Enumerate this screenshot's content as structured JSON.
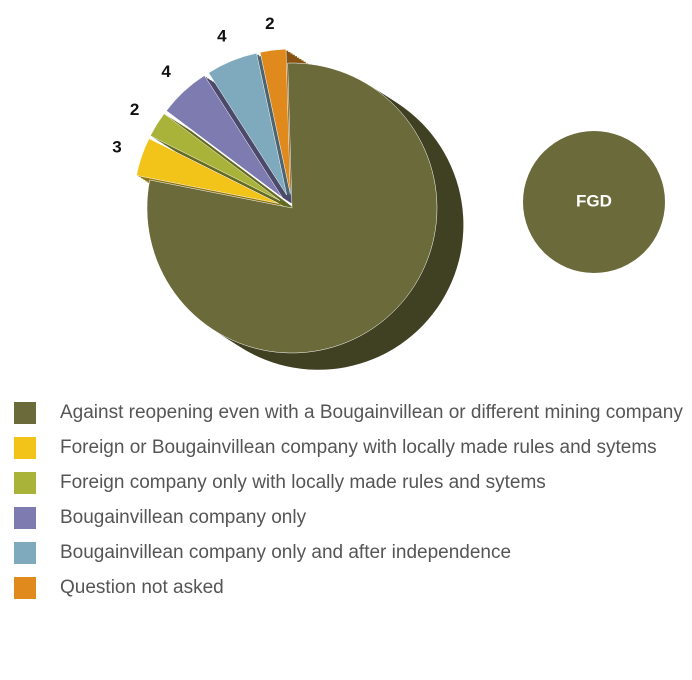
{
  "chart_data": {
    "type": "pie",
    "title": "FGD",
    "categories": [
      "Against reopening even with a Bougainvillean or different mining company",
      "Foreign or Bougainvillean company with locally made rules and sytems",
      "Foreign company only with locally made rules and sytems",
      "Bougainvillean  company only",
      "Bougainvillean company only and after independence",
      "Question not asked"
    ],
    "values": [
      55,
      3,
      2,
      4,
      4,
      2
    ],
    "colors": [
      "#6b6a3a",
      "#f2c41a",
      "#a9b33a",
      "#7e7bb0",
      "#7fa9bc",
      "#e08a1e"
    ]
  }
}
